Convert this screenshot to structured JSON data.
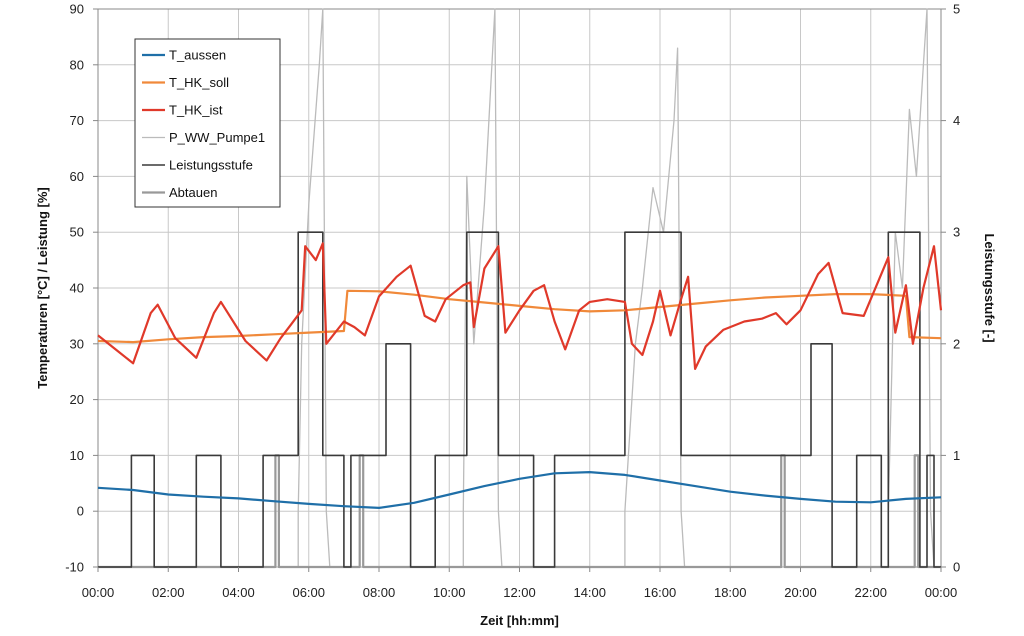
{
  "chart_data": {
    "type": "line",
    "xlabel": "Zeit [hh:mm]",
    "ylabel": "Temperaturen [°C] / Leistung [%]",
    "y2label": "Leistungsstufe [-]",
    "x_ticks": [
      "00:00",
      "02:00",
      "04:00",
      "06:00",
      "08:00",
      "10:00",
      "12:00",
      "14:00",
      "16:00",
      "18:00",
      "20:00",
      "22:00",
      "00:00"
    ],
    "xlim_hours": [
      0,
      24
    ],
    "ylim": [
      -10,
      90
    ],
    "y_ticks": [
      -10,
      0,
      10,
      20,
      30,
      40,
      50,
      60,
      70,
      80,
      90
    ],
    "y2lim": [
      0,
      5
    ],
    "y2_ticks": [
      0,
      1,
      2,
      3,
      4,
      5
    ],
    "grid": true,
    "legend": "top-left",
    "series": [
      {
        "name": "T_aussen",
        "color": "#1f6fa8",
        "axis": "left",
        "points": [
          [
            0,
            4.2
          ],
          [
            1,
            3.8
          ],
          [
            2,
            3.0
          ],
          [
            3,
            2.6
          ],
          [
            4,
            2.3
          ],
          [
            5,
            1.8
          ],
          [
            6,
            1.3
          ],
          [
            7,
            0.9
          ],
          [
            8,
            0.6
          ],
          [
            9,
            1.5
          ],
          [
            10,
            3.0
          ],
          [
            11,
            4.5
          ],
          [
            12,
            5.8
          ],
          [
            13,
            6.8
          ],
          [
            14,
            7.0
          ],
          [
            15,
            6.5
          ],
          [
            16,
            5.5
          ],
          [
            17,
            4.5
          ],
          [
            18,
            3.5
          ],
          [
            19,
            2.8
          ],
          [
            20,
            2.2
          ],
          [
            21,
            1.7
          ],
          [
            22,
            1.6
          ],
          [
            23,
            2.2
          ],
          [
            24,
            2.5
          ]
        ]
      },
      {
        "name": "T_HK_soll",
        "color": "#f0893a",
        "axis": "left",
        "points": [
          [
            0,
            30.5
          ],
          [
            1,
            30.3
          ],
          [
            2,
            30.8
          ],
          [
            3,
            31.2
          ],
          [
            4,
            31.4
          ],
          [
            5,
            31.7
          ],
          [
            6,
            32.0
          ],
          [
            7,
            32.3
          ],
          [
            7.1,
            39.5
          ],
          [
            8,
            39.4
          ],
          [
            9,
            38.8
          ],
          [
            10,
            38.0
          ],
          [
            11,
            37.4
          ],
          [
            12,
            36.8
          ],
          [
            13,
            36.2
          ],
          [
            14,
            35.8
          ],
          [
            15,
            36.0
          ],
          [
            16,
            36.6
          ],
          [
            17,
            37.2
          ],
          [
            18,
            37.8
          ],
          [
            19,
            38.3
          ],
          [
            20,
            38.6
          ],
          [
            21,
            38.9
          ],
          [
            22,
            38.9
          ],
          [
            23,
            38.6
          ],
          [
            23.1,
            31.2
          ],
          [
            24,
            31.0
          ]
        ]
      },
      {
        "name": "T_HK_ist",
        "color": "#e0392a",
        "axis": "left",
        "points": [
          [
            0,
            31.5
          ],
          [
            0.5,
            29.0
          ],
          [
            1,
            26.5
          ],
          [
            1.5,
            35.5
          ],
          [
            1.7,
            37.0
          ],
          [
            2.2,
            31.0
          ],
          [
            2.8,
            27.5
          ],
          [
            3.3,
            35.5
          ],
          [
            3.5,
            37.5
          ],
          [
            4.2,
            30.5
          ],
          [
            4.8,
            27.0
          ],
          [
            5.2,
            31.0
          ],
          [
            5.5,
            33.5
          ],
          [
            5.8,
            36.0
          ],
          [
            5.9,
            47.5
          ],
          [
            6.2,
            45.0
          ],
          [
            6.4,
            48.0
          ],
          [
            6.5,
            30.0
          ],
          [
            7.0,
            34.0
          ],
          [
            7.3,
            33.0
          ],
          [
            7.6,
            31.5
          ],
          [
            8.0,
            38.5
          ],
          [
            8.5,
            42.0
          ],
          [
            8.9,
            44.0
          ],
          [
            9.3,
            35.0
          ],
          [
            9.6,
            34.0
          ],
          [
            9.9,
            38.0
          ],
          [
            10.4,
            40.5
          ],
          [
            10.6,
            41.0
          ],
          [
            10.7,
            33.0
          ],
          [
            11.0,
            43.5
          ],
          [
            11.4,
            47.5
          ],
          [
            11.6,
            32.0
          ],
          [
            12.0,
            36.0
          ],
          [
            12.4,
            39.5
          ],
          [
            12.7,
            40.5
          ],
          [
            13.0,
            34.0
          ],
          [
            13.3,
            29.0
          ],
          [
            13.7,
            36.0
          ],
          [
            14.0,
            37.5
          ],
          [
            14.5,
            38.0
          ],
          [
            15.0,
            37.5
          ],
          [
            15.2,
            30.0
          ],
          [
            15.5,
            28.0
          ],
          [
            15.8,
            34.0
          ],
          [
            16.0,
            39.5
          ],
          [
            16.3,
            31.5
          ],
          [
            16.6,
            38.0
          ],
          [
            16.8,
            42.0
          ],
          [
            17.0,
            25.5
          ],
          [
            17.3,
            29.5
          ],
          [
            17.8,
            32.5
          ],
          [
            18.4,
            34.0
          ],
          [
            18.9,
            34.5
          ],
          [
            19.3,
            35.5
          ],
          [
            19.6,
            33.5
          ],
          [
            20.0,
            36.0
          ],
          [
            20.5,
            42.5
          ],
          [
            20.8,
            44.5
          ],
          [
            21.2,
            35.5
          ],
          [
            21.8,
            35.0
          ],
          [
            22.2,
            41.0
          ],
          [
            22.5,
            45.5
          ],
          [
            22.7,
            32.0
          ],
          [
            23.0,
            40.5
          ],
          [
            23.2,
            30.0
          ],
          [
            23.5,
            40.0
          ],
          [
            23.8,
            47.5
          ],
          [
            24.0,
            36.0
          ]
        ]
      },
      {
        "name": "P_WW_Pumpe1",
        "color": "#bbbbbb",
        "axis": "left",
        "points": [
          [
            0,
            -10
          ],
          [
            5.7,
            -10
          ],
          [
            5.7,
            0
          ],
          [
            5.8,
            30
          ],
          [
            6.0,
            55
          ],
          [
            6.3,
            80
          ],
          [
            6.4,
            90
          ],
          [
            6.5,
            0
          ],
          [
            6.6,
            -10
          ],
          [
            10.4,
            -10
          ],
          [
            10.4,
            0
          ],
          [
            10.5,
            60
          ],
          [
            10.7,
            30
          ],
          [
            11.0,
            55
          ],
          [
            11.3,
            90
          ],
          [
            11.4,
            0
          ],
          [
            11.5,
            -10
          ],
          [
            15.0,
            -10
          ],
          [
            15.0,
            0
          ],
          [
            15.3,
            30
          ],
          [
            15.5,
            40
          ],
          [
            15.8,
            58
          ],
          [
            16.1,
            50
          ],
          [
            16.4,
            70
          ],
          [
            16.5,
            83
          ],
          [
            16.6,
            0
          ],
          [
            16.7,
            -10
          ],
          [
            22.5,
            -10
          ],
          [
            22.5,
            0
          ],
          [
            22.7,
            50
          ],
          [
            22.9,
            40
          ],
          [
            23.1,
            72
          ],
          [
            23.3,
            60
          ],
          [
            23.5,
            80
          ],
          [
            23.6,
            90
          ],
          [
            23.7,
            0
          ],
          [
            23.8,
            -10
          ],
          [
            24,
            -10
          ]
        ]
      },
      {
        "name": "Leistungsstufe",
        "color": "#3a3a3a",
        "axis": "right",
        "points": [
          [
            0,
            0
          ],
          [
            0.95,
            0
          ],
          [
            0.95,
            1
          ],
          [
            1.6,
            1
          ],
          [
            1.6,
            0
          ],
          [
            2.8,
            0
          ],
          [
            2.8,
            1
          ],
          [
            3.5,
            1
          ],
          [
            3.5,
            0
          ],
          [
            4.7,
            0
          ],
          [
            4.7,
            1
          ],
          [
            5.7,
            1
          ],
          [
            5.7,
            3
          ],
          [
            6.4,
            3
          ],
          [
            6.4,
            1
          ],
          [
            7.0,
            1
          ],
          [
            7.0,
            0
          ],
          [
            7.2,
            0
          ],
          [
            7.2,
            1
          ],
          [
            8.2,
            1
          ],
          [
            8.2,
            2
          ],
          [
            8.9,
            2
          ],
          [
            8.9,
            0
          ],
          [
            9.6,
            0
          ],
          [
            9.6,
            1
          ],
          [
            10.5,
            1
          ],
          [
            10.5,
            3
          ],
          [
            11.4,
            3
          ],
          [
            11.4,
            1
          ],
          [
            12.4,
            1
          ],
          [
            12.4,
            0
          ],
          [
            13.0,
            0
          ],
          [
            13.0,
            1
          ],
          [
            15.0,
            1
          ],
          [
            15.0,
            3
          ],
          [
            16.6,
            3
          ],
          [
            16.6,
            1
          ],
          [
            20.3,
            1
          ],
          [
            20.3,
            2
          ],
          [
            20.9,
            2
          ],
          [
            20.9,
            0
          ],
          [
            21.6,
            0
          ],
          [
            21.6,
            1
          ],
          [
            22.3,
            1
          ],
          [
            22.3,
            0
          ],
          [
            22.5,
            0
          ],
          [
            22.5,
            3
          ],
          [
            23.4,
            3
          ],
          [
            23.4,
            0
          ],
          [
            23.6,
            0
          ],
          [
            23.6,
            1
          ],
          [
            23.8,
            1
          ],
          [
            23.8,
            0
          ],
          [
            24,
            0
          ]
        ]
      },
      {
        "name": "Abtauen",
        "color": "#999999",
        "axis": "right",
        "points": [
          [
            0,
            0
          ],
          [
            5.05,
            0
          ],
          [
            5.05,
            1
          ],
          [
            5.15,
            1
          ],
          [
            5.15,
            0
          ],
          [
            7.45,
            0
          ],
          [
            7.45,
            1
          ],
          [
            7.55,
            1
          ],
          [
            7.55,
            0
          ],
          [
            19.45,
            0
          ],
          [
            19.45,
            1
          ],
          [
            19.55,
            1
          ],
          [
            19.55,
            0
          ],
          [
            23.25,
            0
          ],
          [
            23.25,
            1
          ],
          [
            23.35,
            1
          ],
          [
            23.35,
            0
          ],
          [
            24,
            0
          ]
        ]
      }
    ]
  }
}
